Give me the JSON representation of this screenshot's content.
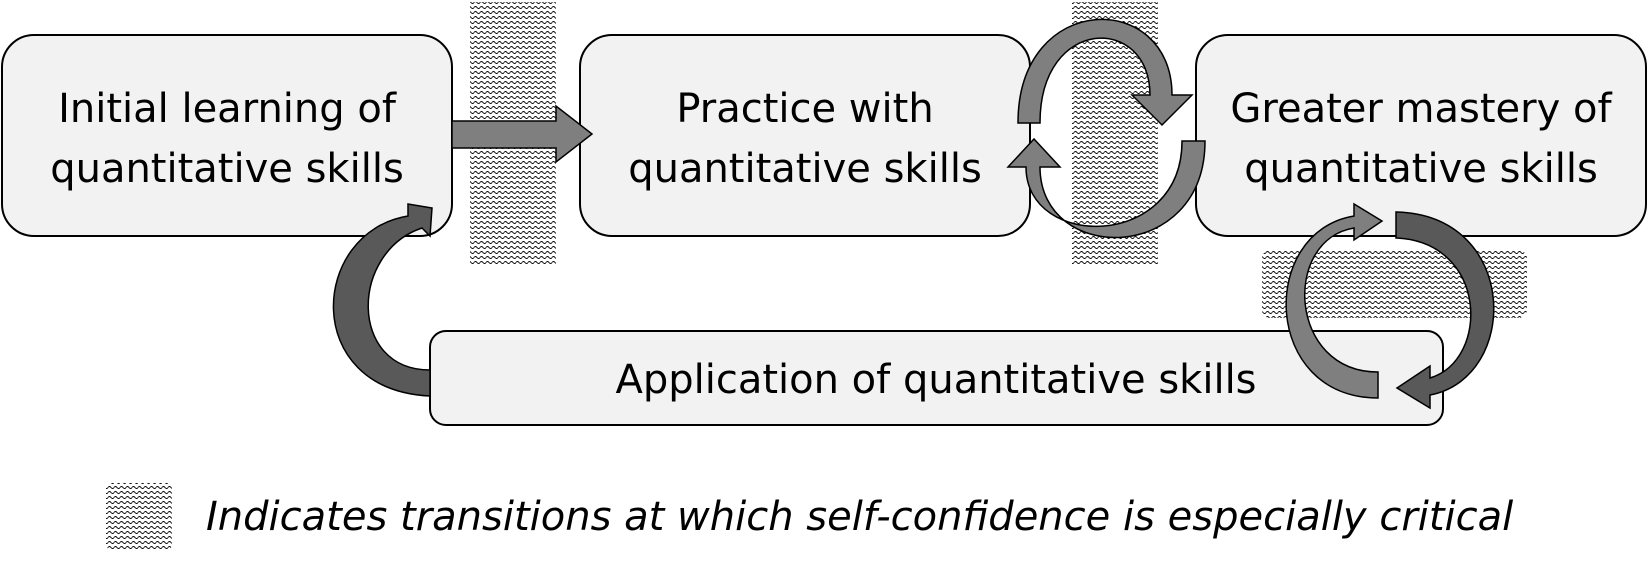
{
  "boxes": {
    "initial": {
      "line1": "Initial learning of",
      "line2": "quantitative skills"
    },
    "practice": {
      "line1": "Practice with",
      "line2": "quantitative skills"
    },
    "mastery": {
      "line1": "Greater mastery of",
      "line2": "quantitative skills"
    },
    "application": {
      "line1": "Application of quantitative skills"
    }
  },
  "legend": {
    "text": "Indicates transitions at which self-confidence is especially critical"
  },
  "colors": {
    "box_fill": "#f2f2f2",
    "arrow_light": "#7f7f7f",
    "arrow_dark": "#595959",
    "hatch": "#000000"
  }
}
